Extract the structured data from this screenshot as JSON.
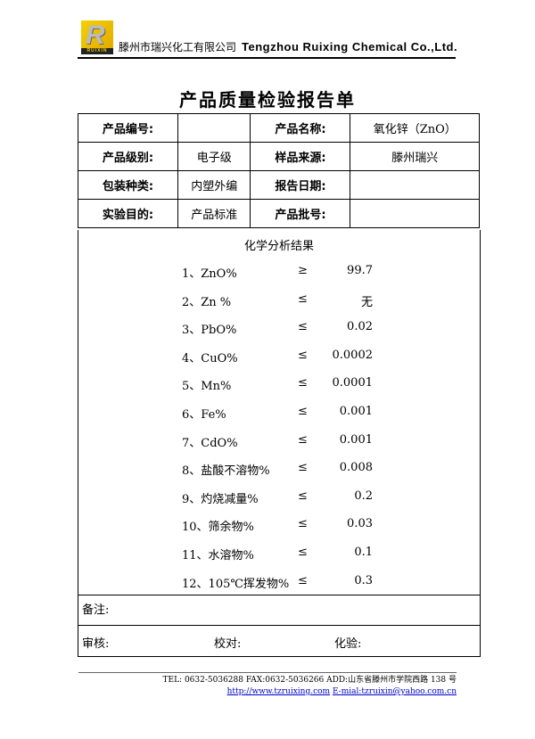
{
  "header": {
    "logo_text": "RUIXIN",
    "company_cn": "滕州市瑞兴化工有限公司",
    "company_en": "Tengzhou Ruixing Chemical Co.,Ltd."
  },
  "title": "产品质量检验报告单",
  "info": [
    {
      "l1": "产品编号:",
      "v1": "",
      "l2": "产品名称:",
      "v2": "氧化锌（ZnO）"
    },
    {
      "l1": "产品级别:",
      "v1": "电子级",
      "l2": "样品来源:",
      "v2": "滕州瑞兴"
    },
    {
      "l1": "包装种类:",
      "v1": "内塑外编",
      "l2": "报告日期:",
      "v2": ""
    },
    {
      "l1": "实验目的:",
      "v1": "产品标准",
      "l2": "产品批号:",
      "v2": ""
    }
  ],
  "results": {
    "heading": "化学分析结果",
    "items": [
      {
        "name": "1、ZnO%",
        "sym": "≥",
        "val": "99.7"
      },
      {
        "name": "2、Zn %",
        "sym": "≤",
        "val": "无"
      },
      {
        "name": "3、PbO%",
        "sym": "≤",
        "val": "0.02"
      },
      {
        "name": "4、CuO%",
        "sym": "≤",
        "val": "0.0002"
      },
      {
        "name": "5、Mn%",
        "sym": "≤",
        "val": "0.0001"
      },
      {
        "name": "6、Fe%",
        "sym": "≤",
        "val": "0.001"
      },
      {
        "name": "7、CdO%",
        "sym": "≤",
        "val": "0.001"
      },
      {
        "name": "8、盐酸不溶物%",
        "sym": "≤",
        "val": "0.008"
      },
      {
        "name": "9、灼烧减量%",
        "sym": "≤",
        "val": "0.2"
      },
      {
        "name": "10、筛余物%",
        "sym": "≤",
        "val": "0.03"
      },
      {
        "name": "11、水溶物%",
        "sym": "≤",
        "val": "0.1"
      },
      {
        "name": "12、105℃挥发物%",
        "sym": "≤",
        "val": "0.3"
      }
    ]
  },
  "notes_label": "备注:",
  "sign": {
    "review": "审核:",
    "check": "校对:",
    "test": "化验:"
  },
  "footer": {
    "line1": "TEL: 0632-5036288    FAX:0632-5036266 ADD:山东省滕州市学院西路 138 号",
    "website": "http://www.tzruixing.com",
    "email": "E-mial:tzruixin@yahoo.com.cn"
  }
}
